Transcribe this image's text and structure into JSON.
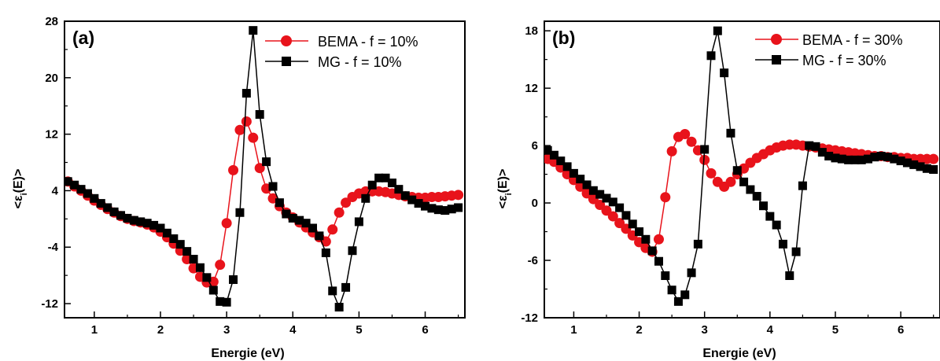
{
  "chart_data": [
    {
      "type": "line",
      "panel_label": "(a)",
      "xlabel": "Energie (eV)",
      "ylabel_main": "<ε",
      "ylabel_sub": "i",
      "ylabel_rest": "(E)>",
      "xlim": [
        0.55,
        6.6
      ],
      "ylim": [
        -14,
        28
      ],
      "xticks": [
        1,
        2,
        3,
        4,
        5,
        6
      ],
      "yticks": [
        -12,
        -4,
        4,
        12,
        20,
        28
      ],
      "legend_position": "top-right",
      "series": [
        {
          "name": "BEMA - f = 10%",
          "color": "#e8131b",
          "marker": "circle",
          "x": [
            0.6,
            0.7,
            0.8,
            0.9,
            1.0,
            1.1,
            1.2,
            1.3,
            1.4,
            1.5,
            1.6,
            1.7,
            1.8,
            1.9,
            2.0,
            2.1,
            2.2,
            2.3,
            2.4,
            2.5,
            2.6,
            2.7,
            2.8,
            2.9,
            3.0,
            3.1,
            3.2,
            3.3,
            3.4,
            3.5,
            3.6,
            3.7,
            3.8,
            3.9,
            4.0,
            4.1,
            4.2,
            4.3,
            4.4,
            4.5,
            4.6,
            4.7,
            4.8,
            4.9,
            5.0,
            5.1,
            5.2,
            5.3,
            5.4,
            5.5,
            5.6,
            5.7,
            5.8,
            5.9,
            6.0,
            6.1,
            6.2,
            6.3,
            6.4,
            6.5
          ],
          "values": [
            5.3,
            4.6,
            4.0,
            3.3,
            2.6,
            2.0,
            1.4,
            0.9,
            0.4,
            0.0,
            -0.3,
            -0.5,
            -0.8,
            -1.2,
            -1.8,
            -2.6,
            -3.5,
            -4.5,
            -5.7,
            -7.0,
            -8.2,
            -9.0,
            -8.9,
            -6.5,
            -0.6,
            6.9,
            12.6,
            13.8,
            11.5,
            7.2,
            4.3,
            2.9,
            1.8,
            0.9,
            0.2,
            -0.5,
            -1.2,
            -1.9,
            -2.6,
            -3.2,
            -1.5,
            0.9,
            2.3,
            3.1,
            3.6,
            3.9,
            3.9,
            3.9,
            3.8,
            3.6,
            3.4,
            3.2,
            3.1,
            3.0,
            3.0,
            3.1,
            3.1,
            3.2,
            3.3,
            3.4
          ]
        },
        {
          "name": "MG - f = 10%",
          "color": "#000000",
          "marker": "square",
          "x": [
            0.6,
            0.7,
            0.8,
            0.9,
            1.0,
            1.1,
            1.2,
            1.3,
            1.4,
            1.5,
            1.6,
            1.7,
            1.8,
            1.9,
            2.0,
            2.1,
            2.2,
            2.3,
            2.4,
            2.5,
            2.6,
            2.7,
            2.8,
            2.9,
            3.0,
            3.1,
            3.2,
            3.3,
            3.4,
            3.5,
            3.6,
            3.7,
            3.8,
            3.9,
            4.0,
            4.1,
            4.2,
            4.3,
            4.4,
            4.5,
            4.6,
            4.7,
            4.8,
            4.9,
            5.0,
            5.1,
            5.2,
            5.3,
            5.4,
            5.5,
            5.6,
            5.7,
            5.8,
            5.9,
            6.0,
            6.1,
            6.2,
            6.3,
            6.4,
            6.5
          ],
          "values": [
            5.3,
            4.8,
            4.2,
            3.6,
            2.9,
            2.2,
            1.6,
            1.0,
            0.5,
            0.1,
            -0.2,
            -0.4,
            -0.6,
            -0.9,
            -1.3,
            -2.0,
            -2.8,
            -3.6,
            -4.6,
            -5.7,
            -6.9,
            -8.3,
            -10.1,
            -11.7,
            -11.8,
            -8.6,
            0.9,
            17.8,
            26.7,
            14.8,
            8.1,
            4.6,
            2.3,
            0.7,
            0.1,
            -0.2,
            -0.6,
            -1.3,
            -2.4,
            -4.8,
            -10.2,
            -12.5,
            -9.7,
            -4.5,
            -0.4,
            2.9,
            4.8,
            5.8,
            5.8,
            5.1,
            4.2,
            3.3,
            2.7,
            2.2,
            1.8,
            1.5,
            1.3,
            1.2,
            1.4,
            1.6
          ]
        }
      ]
    },
    {
      "type": "line",
      "panel_label": "(b)",
      "xlabel": "Energie (eV)",
      "ylabel_main": "<ε",
      "ylabel_sub": "i",
      "ylabel_rest": "(E)>",
      "xlim": [
        0.55,
        6.6
      ],
      "ylim": [
        -12,
        19
      ],
      "xticks": [
        1,
        2,
        3,
        4,
        5,
        6
      ],
      "yticks": [
        -12,
        -6,
        0,
        6,
        12,
        18
      ],
      "legend_position": "top-right",
      "series": [
        {
          "name": "BEMA - f = 30%",
          "color": "#e8131b",
          "marker": "circle",
          "x": [
            0.6,
            0.7,
            0.8,
            0.9,
            1.0,
            1.1,
            1.2,
            1.3,
            1.4,
            1.5,
            1.6,
            1.7,
            1.8,
            1.9,
            2.0,
            2.1,
            2.2,
            2.3,
            2.4,
            2.5,
            2.6,
            2.7,
            2.8,
            2.9,
            3.0,
            3.1,
            3.2,
            3.3,
            3.4,
            3.5,
            3.6,
            3.7,
            3.8,
            3.9,
            4.0,
            4.1,
            4.2,
            4.3,
            4.4,
            4.5,
            4.6,
            4.7,
            4.8,
            4.9,
            5.0,
            5.1,
            5.2,
            5.3,
            5.4,
            5.5,
            5.6,
            5.7,
            5.8,
            5.9,
            6.0,
            6.1,
            6.2,
            6.3,
            6.4,
            6.5
          ],
          "values": [
            4.6,
            4.3,
            3.7,
            3.0,
            2.4,
            1.7,
            1.0,
            0.4,
            -0.2,
            -0.8,
            -1.4,
            -2.1,
            -2.7,
            -3.4,
            -4.1,
            -4.7,
            -5.1,
            -3.8,
            0.6,
            5.4,
            6.9,
            7.2,
            6.4,
            5.5,
            4.5,
            3.1,
            2.2,
            1.7,
            2.2,
            3.0,
            3.6,
            4.2,
            4.7,
            5.1,
            5.5,
            5.8,
            6.0,
            6.1,
            6.1,
            6.0,
            5.9,
            5.8,
            5.7,
            5.6,
            5.5,
            5.4,
            5.3,
            5.2,
            5.1,
            5.0,
            4.9,
            4.9,
            4.8,
            4.8,
            4.7,
            4.7,
            4.6,
            4.6,
            4.6,
            4.6
          ]
        },
        {
          "name": "MG - f = 30%",
          "color": "#000000",
          "marker": "square",
          "x": [
            0.6,
            0.7,
            0.8,
            0.9,
            1.0,
            1.1,
            1.2,
            1.3,
            1.4,
            1.5,
            1.6,
            1.7,
            1.8,
            1.9,
            2.0,
            2.1,
            2.2,
            2.3,
            2.4,
            2.5,
            2.6,
            2.7,
            2.8,
            2.9,
            3.0,
            3.1,
            3.2,
            3.3,
            3.4,
            3.5,
            3.6,
            3.7,
            3.8,
            3.9,
            4.0,
            4.1,
            4.2,
            4.3,
            4.4,
            4.5,
            4.6,
            4.7,
            4.8,
            4.9,
            5.0,
            5.1,
            5.2,
            5.3,
            5.4,
            5.5,
            5.6,
            5.7,
            5.8,
            5.9,
            6.0,
            6.1,
            6.2,
            6.3,
            6.4,
            6.5
          ],
          "values": [
            5.5,
            5.0,
            4.4,
            3.8,
            3.1,
            2.5,
            1.9,
            1.3,
            0.9,
            0.5,
            0.1,
            -0.5,
            -1.3,
            -2.2,
            -3.0,
            -3.8,
            -5.0,
            -6.1,
            -7.6,
            -9.1,
            -10.3,
            -9.6,
            -7.3,
            -4.3,
            5.6,
            15.4,
            18.0,
            13.6,
            7.3,
            3.4,
            2.2,
            1.4,
            0.7,
            -0.3,
            -1.4,
            -2.3,
            -4.3,
            -7.6,
            -5.1,
            1.8,
            6.0,
            5.9,
            5.3,
            4.9,
            4.7,
            4.6,
            4.5,
            4.5,
            4.5,
            4.6,
            4.8,
            4.9,
            4.8,
            4.6,
            4.4,
            4.2,
            4.0,
            3.8,
            3.6,
            3.5
          ]
        }
      ]
    }
  ]
}
